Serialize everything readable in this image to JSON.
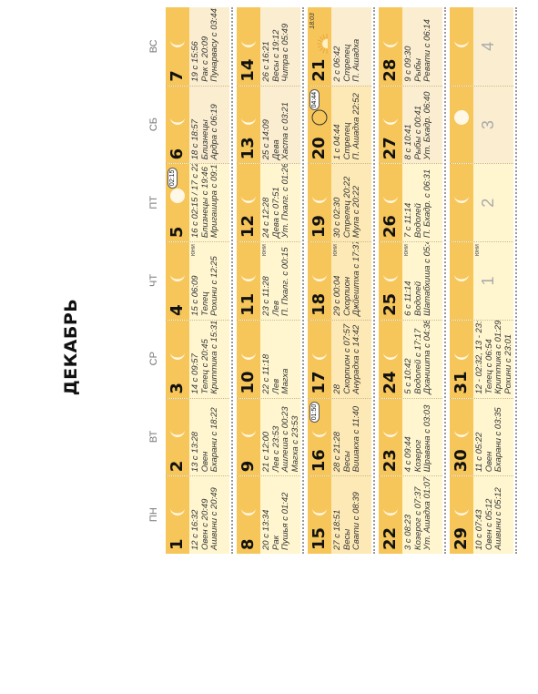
{
  "title": "ДЕКАБРЬ",
  "weekdays": [
    "ПН",
    "ВТ",
    "СР",
    "ЧТ",
    "ПТ",
    "СБ",
    "ВС"
  ],
  "weeks": [
    [
      {
        "day": "1",
        "lines": [
          "12 с 16:32",
          "Овен с 20:49",
          "Ашвини с 20:49"
        ],
        "moon": "crescent",
        "band": true,
        "tint": 0
      },
      {
        "day": "2",
        "lines": [
          "13 с 13:28",
          "Овен",
          "Бхарани с 18:22"
        ],
        "moon": "crescent",
        "band": true,
        "tint": 0
      },
      {
        "day": "3",
        "lines": [
          "14 с 09:57",
          "Телец с 20:45",
          "Криттика с 15:31"
        ],
        "moon": "crescent",
        "band": true,
        "tint": 0
      },
      {
        "day": "4",
        "lines": [
          "15 с 06:09",
          "Телец",
          "Рохини с 12:25"
        ],
        "moon": "crescent",
        "band": true,
        "tint": 0,
        "ul": "юни"
      },
      {
        "day": "5",
        "lines": [
          "16 с 02:15 / 17 с 22:27",
          "Близнецы с 19:46",
          "Мригашира с 09:17"
        ],
        "moon": "full",
        "band": true,
        "tint": 0,
        "time": "02:15"
      },
      {
        "day": "6",
        "lines": [
          "18 с 18:57",
          "Близнецы",
          "Ардра с 06:19"
        ],
        "moon": "crescent",
        "band": true,
        "tint": 1
      },
      {
        "day": "7",
        "lines": [
          "19 с 15:56",
          "Рак с 20:09",
          "Пунарвасу с 03:44"
        ],
        "moon": "crescent",
        "band": true,
        "tint": 1
      }
    ],
    [
      {
        "day": "8",
        "lines": [
          "20 с 13:34",
          "Рак",
          "Пушья с 01:42"
        ],
        "moon": "crescent",
        "band": true,
        "tint": 0
      },
      {
        "day": "9",
        "lines": [
          "21 с 12:00",
          "Лев с 23:53",
          "Ашлеша с 00:23",
          "Магха с 23:53"
        ],
        "moon": "crescent",
        "band": true,
        "tint": 0
      },
      {
        "day": "10",
        "lines": [
          "22 с 11:18",
          "Лев",
          "Магха"
        ],
        "moon": "crescent",
        "band": true,
        "tint": 0
      },
      {
        "day": "11",
        "lines": [
          "23 с 11:28",
          "Лев",
          "П. Пхалг. с 00:15"
        ],
        "moon": "crescent",
        "band": true,
        "tint": 0,
        "ul": "юни"
      },
      {
        "day": "12",
        "lines": [
          "24 с 12:28",
          "Дева с 07:51",
          "Ут. Пхалг. с 01:26"
        ],
        "moon": "crescent",
        "band": true,
        "tint": 0
      },
      {
        "day": "13",
        "lines": [
          "25 с 14:09",
          "Дева",
          "Хаста с 03:21"
        ],
        "moon": "crescent",
        "band": true,
        "tint": 1
      },
      {
        "day": "14",
        "lines": [
          "26 с 16:21",
          "Весы с 19:12",
          "Читра с 05:49"
        ],
        "moon": "crescent",
        "band": true,
        "tint": 1
      }
    ],
    [
      {
        "day": "15",
        "lines": [
          "27 с 18:51",
          "Весы",
          "Свати с 08:39"
        ],
        "moon": "crescent",
        "band": true,
        "tint": 2
      },
      {
        "day": "16",
        "lines": [
          "28 с 21:28",
          "Весы",
          "Вишакха с 11:40"
        ],
        "moon": "crescent",
        "band": true,
        "tint": 2,
        "time": "01:50"
      },
      {
        "day": "17",
        "lines": [
          "28",
          "Скорпион с 07:57",
          "Анурадха с 14:42"
        ],
        "moon": "crescent",
        "band": true,
        "tint": 2
      },
      {
        "day": "18",
        "lines": [
          "29 с 00:04",
          "Скорпион",
          "Джйештха с 17:37"
        ],
        "moon": "crescent",
        "band": true,
        "tint": 2,
        "ul": "юни"
      },
      {
        "day": "19",
        "lines": [
          "30 с 02:30",
          "Стрелец 20:22",
          "Мула с 20:22"
        ],
        "moon": "crescent",
        "band": true,
        "tint": 2
      },
      {
        "day": "20",
        "lines": [
          "1 с 04:44",
          "Стрелец",
          "П. Ашадха 22:52"
        ],
        "moon": "new",
        "band": true,
        "tint": 2,
        "time": "04:44"
      },
      {
        "day": "21",
        "lines": [
          "2 с 06:42",
          "Стрелец",
          "П. Ашадха"
        ],
        "moon": "sun",
        "band": true,
        "tint": 1,
        "sun_time": "18:03"
      }
    ],
    [
      {
        "day": "22",
        "lines": [
          "3 с 08:23",
          "Козерог с 07:37",
          "Ут. Ашадха 01:07"
        ],
        "moon": "crescent",
        "band": true,
        "tint": 0
      },
      {
        "day": "23",
        "lines": [
          "4 с 09:44",
          "Козерог",
          "Шравана с 03:03"
        ],
        "moon": "crescent",
        "band": true,
        "tint": 0
      },
      {
        "day": "24",
        "lines": [
          "5 с 10:42",
          "Водолей с 17:17",
          "Дханишта с 04:38"
        ],
        "moon": "crescent",
        "band": true,
        "tint": 0
      },
      {
        "day": "25",
        "lines": [
          "6 с 11:14",
          "Водолей",
          "Шатабхиша с 05:49"
        ],
        "moon": "crescent",
        "band": true,
        "tint": 0,
        "ul": "юни"
      },
      {
        "day": "26",
        "lines": [
          "7 с 11:14",
          "Водолей",
          "П. Бхадр. с 06:31"
        ],
        "moon": "crescent",
        "band": true,
        "tint": 0
      },
      {
        "day": "27",
        "lines": [
          "8 с 10:41",
          "Рыбы с 00:41",
          "Ут. Бхадр. 06:40"
        ],
        "moon": "crescent",
        "band": true,
        "tint": 1
      },
      {
        "day": "28",
        "lines": [
          "9 с 09:30",
          "Рыбы",
          "Ревати с 06:14"
        ],
        "moon": "crescent",
        "band": true,
        "tint": 1
      }
    ],
    [
      {
        "day": "29",
        "lines": [
          "10 с 07:43",
          "Овен с 05:12",
          "Ашвини с 05:12"
        ],
        "moon": "crescent",
        "band": true,
        "tint": 0
      },
      {
        "day": "30",
        "lines": [
          "11 с 05:22",
          "Овен",
          "Бхарани с 03:35"
        ],
        "moon": "crescent",
        "band": true,
        "tint": 0
      },
      {
        "day": "31",
        "lines": [
          "12 - 02:32, 13 - 23:19",
          "Телец с 06:54",
          "Криттика с 01:29 /",
          "Рохини с 23:01"
        ],
        "moon": "crescent",
        "band": true,
        "tint": 0
      },
      {
        "day": "",
        "ghost": "1",
        "moon": "crescent",
        "band": true,
        "tint": 0,
        "ul": "юни"
      },
      {
        "day": "",
        "ghost": "2",
        "moon": "crescent",
        "band": true,
        "tint": 0
      },
      {
        "day": "",
        "ghost": "3",
        "moon": "full",
        "band": true,
        "tint": 1
      },
      {
        "day": "",
        "ghost": "4",
        "moon": "crescent",
        "band": true,
        "tint": 1
      }
    ]
  ]
}
